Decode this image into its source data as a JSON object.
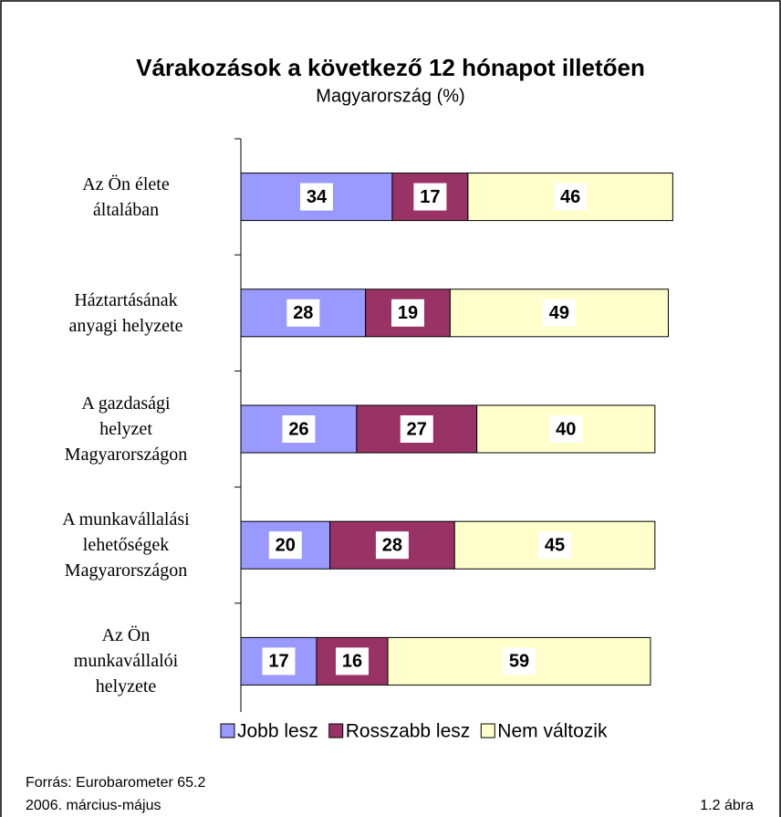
{
  "chart_data": {
    "type": "stacked_barh",
    "title": "Várakozások a következő 12 hónapot illetően",
    "subtitle": "Magyarország (%)",
    "categories": [
      "Az Ön élete\náltalában",
      "Háztartásának\nanyagi helyzete",
      "A gazdasági\nhelyzet\nMagyarországon",
      "A munkavállalási\nlehetőségek\nMagyarországon",
      "Az Ön\nmunkavállalói\nhelyzete"
    ],
    "series": [
      {
        "name": "Jobb lesz",
        "color": "#9999ff",
        "values": [
          34,
          28,
          26,
          20,
          17
        ]
      },
      {
        "name": "Rosszabb lesz",
        "color": "#993366",
        "values": [
          17,
          19,
          27,
          28,
          16
        ]
      },
      {
        "name": "Nem változik",
        "color": "#ffffcc",
        "values": [
          46,
          49,
          40,
          45,
          59
        ]
      }
    ],
    "xlim": [
      0,
      100
    ],
    "legend": "bottom",
    "source": "Forrás: Eurobarometer 65.2",
    "date": "2006. március-május",
    "figure": "1.2 ábra"
  }
}
